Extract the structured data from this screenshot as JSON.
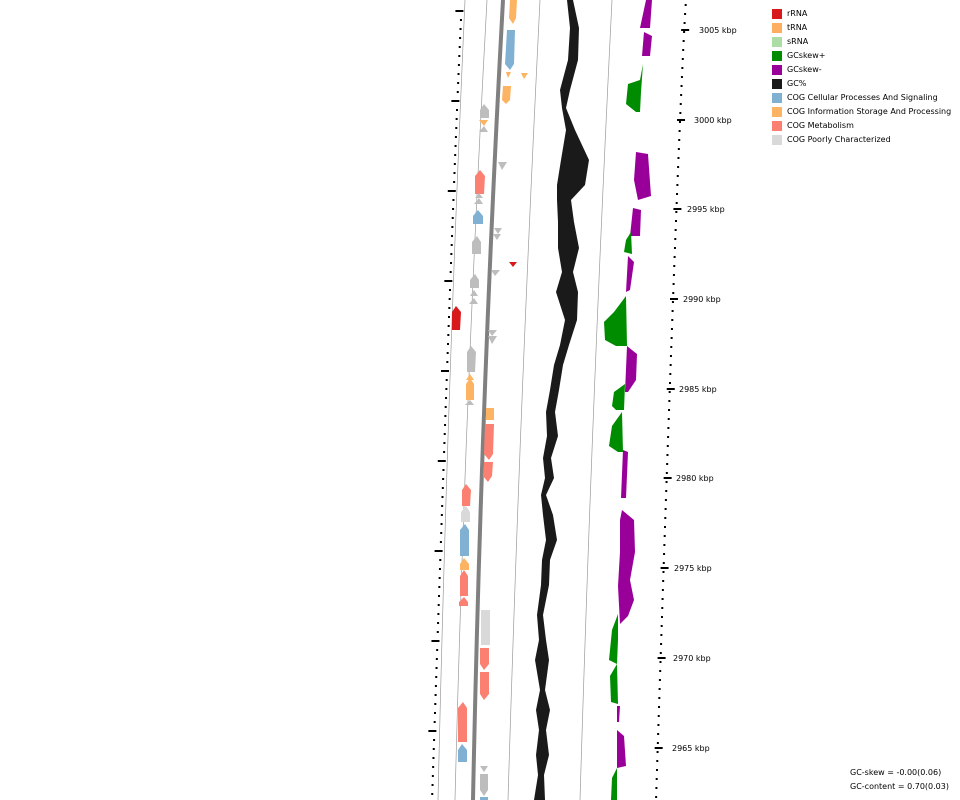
{
  "legend": [
    {
      "label": "rRNA",
      "color": "#d7191c"
    },
    {
      "label": "tRNA",
      "color": "#fdae61"
    },
    {
      "label": "sRNA",
      "color": "#abdda4"
    },
    {
      "label": "GCskew+",
      "color": "#008c00"
    },
    {
      "label": "GCskew-",
      "color": "#990099"
    },
    {
      "label": "GC%",
      "color": "#1a1a1a"
    },
    {
      "label": "COG Cellular Processes And Signaling",
      "color": "#80b1d3"
    },
    {
      "label": "COG Information Storage And Processing",
      "color": "#fdb462"
    },
    {
      "label": "COG Metabolism",
      "color": "#fb8072"
    },
    {
      "label": "COG Poorly Characterized",
      "color": "#d9d9d9"
    }
  ],
  "ticks": [
    {
      "label": "3005 kbp"
    },
    {
      "label": "3000 kbp"
    },
    {
      "label": "2995 kbp"
    },
    {
      "label": "2990 kbp"
    },
    {
      "label": "2985 kbp"
    },
    {
      "label": "2980 kbp"
    },
    {
      "label": "2975 kbp"
    },
    {
      "label": "2970 kbp"
    },
    {
      "label": "2965 kbp"
    }
  ],
  "stats": {
    "gc_skew": "GC-skew = -0.00(0.06)",
    "gc_content": "GC-content = 0.70(0.03)"
  }
}
